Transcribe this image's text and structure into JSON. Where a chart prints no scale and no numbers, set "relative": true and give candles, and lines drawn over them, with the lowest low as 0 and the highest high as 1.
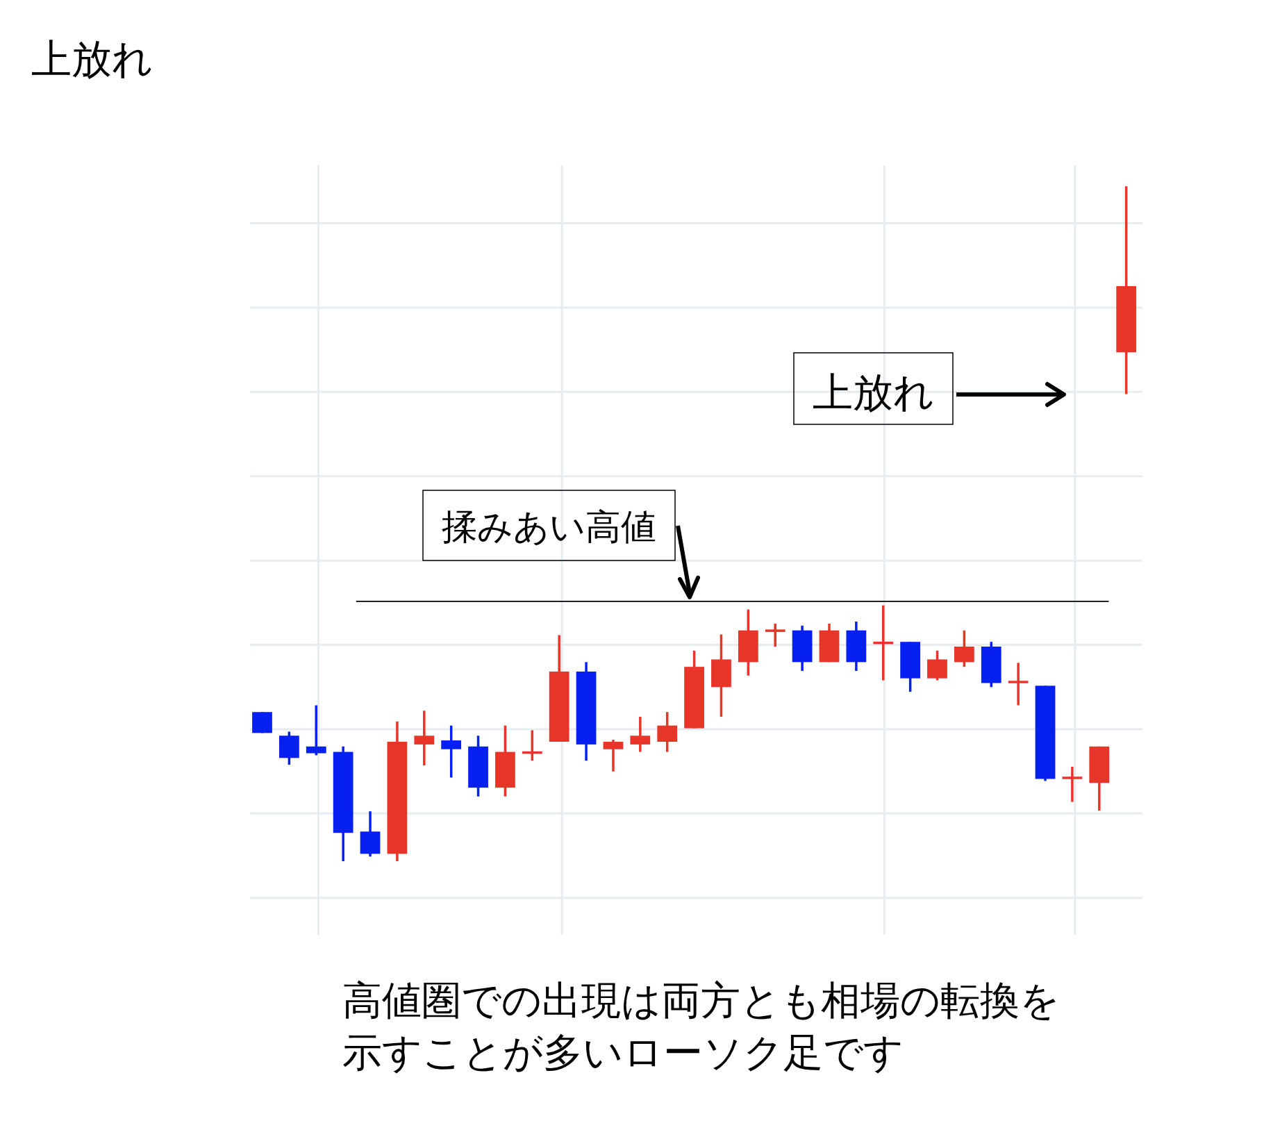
{
  "chart_data": {
    "type": "candlestick",
    "title": "上放れ",
    "relative": true,
    "grid": true,
    "categories": [
      null,
      null,
      null,
      null,
      null,
      null,
      null,
      null,
      null,
      null,
      null,
      null,
      null,
      null,
      null,
      null,
      null,
      null,
      null,
      null,
      null,
      null,
      null,
      null,
      null,
      null,
      null,
      null,
      null,
      null,
      null,
      null,
      null
    ],
    "ohlc": [
      [
        0.221,
        0.221,
        0.19,
        0.19
      ],
      [
        0.186,
        0.192,
        0.143,
        0.153
      ],
      [
        0.17,
        0.231,
        0.157,
        0.16
      ],
      [
        0.162,
        0.17,
        0,
        0.042
      ],
      [
        0.044,
        0.074,
        0.007,
        0.011
      ],
      [
        0.011,
        0.207,
        0,
        0.177
      ],
      [
        0.173,
        0.223,
        0.142,
        0.186
      ],
      [
        0.179,
        0.201,
        0.124,
        0.166
      ],
      [
        0.17,
        0.186,
        0.096,
        0.109
      ],
      [
        0.109,
        0.201,
        0.096,
        0.162
      ],
      [
        0.16,
        0.194,
        0.149,
        0.162
      ],
      [
        0.177,
        0.335,
        0.177,
        0.281
      ],
      [
        0.281,
        0.295,
        0.149,
        0.173
      ],
      [
        0.166,
        0.18,
        0.133,
        0.177
      ],
      [
        0.173,
        0.214,
        0.162,
        0.186
      ],
      [
        0.177,
        0.221,
        0.162,
        0.201
      ],
      [
        0.197,
        0.312,
        0.197,
        0.288
      ],
      [
        0.258,
        0.336,
        0.214,
        0.299
      ],
      [
        0.295,
        0.373,
        0.275,
        0.342
      ],
      [
        0.341,
        0.352,
        0.318,
        0.342
      ],
      [
        0.342,
        0.349,
        0.282,
        0.295
      ],
      [
        0.295,
        0.352,
        0.295,
        0.342
      ],
      [
        0.342,
        0.355,
        0.282,
        0.295
      ],
      [
        0.323,
        0.379,
        0.268,
        0.324
      ],
      [
        0.325,
        0.325,
        0.251,
        0.271
      ],
      [
        0.271,
        0.312,
        0.268,
        0.299
      ],
      [
        0.295,
        0.342,
        0.288,
        0.318
      ],
      [
        0.318,
        0.325,
        0.258,
        0.264
      ],
      [
        0.265,
        0.294,
        0.231,
        0.266
      ],
      [
        0.26,
        0.26,
        0.119,
        0.122
      ],
      [
        0.123,
        0.14,
        0.088,
        0.124
      ],
      [
        0.116,
        0.17,
        0.075,
        0.17
      ],
      [
        0.754,
        1,
        0.692,
        0.852
      ]
    ],
    "colors": [
      "#0520f0",
      "#0520f0",
      "#0520f0",
      "#0520f0",
      "#0520f0",
      "#e8352a",
      "#e8352a",
      "#0520f0",
      "#0520f0",
      "#e8352a",
      "#e8352a",
      "#e8352a",
      "#0520f0",
      "#e8352a",
      "#e8352a",
      "#e8352a",
      "#e8352a",
      "#e8352a",
      "#e8352a",
      "#e8352a",
      "#0520f0",
      "#e8352a",
      "#0520f0",
      "#e8352a",
      "#0520f0",
      "#e8352a",
      "#e8352a",
      "#0520f0",
      "#e8352a",
      "#0520f0",
      "#e8352a",
      "#e8352a",
      "#e8352a"
    ],
    "ref_lines": [
      {
        "axis": "y",
        "value": 0.385,
        "label": "揉みあい高値",
        "color": "#000000"
      }
    ],
    "annotations": [
      "上放れ",
      "高値圏での出現は両方とも相場の転換を示すことが多いローソク足です"
    ]
  }
}
